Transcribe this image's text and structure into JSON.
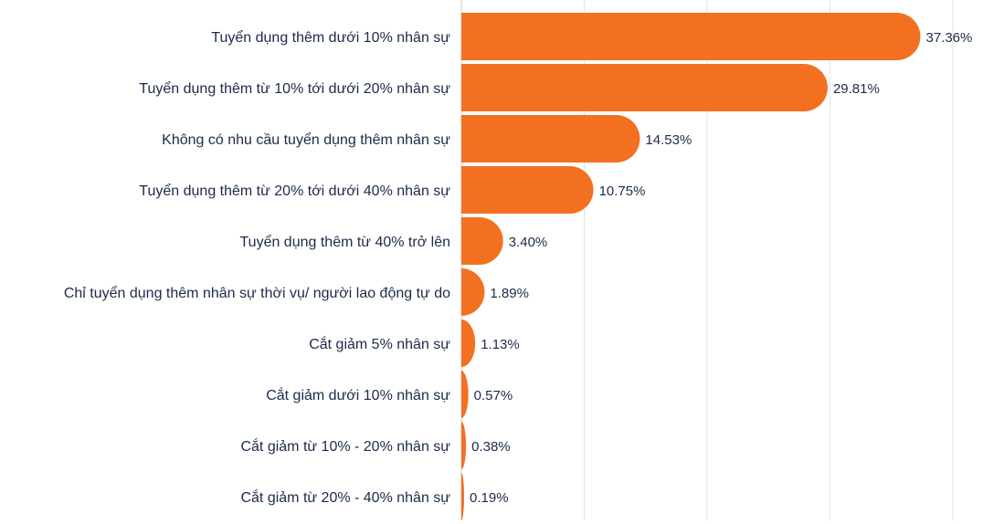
{
  "chart_data": {
    "type": "bar",
    "orientation": "horizontal",
    "categories": [
      "Tuyển dụng thêm dưới 10% nhân sự",
      "Tuyển dụng thêm từ 10% tới dưới 20% nhân sự",
      "Không có nhu cầu tuyển dụng thêm nhân sự",
      "Tuyển dụng thêm từ 20% tới dưới 40% nhân sự",
      "Tuyển dụng thêm từ 40% trở lên",
      "Chỉ tuyển dụng thêm nhân sự thời vụ/ người lao động tự do",
      "Cắt giảm 5% nhân sự",
      "Cắt giảm dưới 10% nhân sự",
      "Cắt giảm từ 10% - 20% nhân sự",
      "Cắt giảm từ 20% - 40% nhân sự"
    ],
    "values": [
      37.36,
      29.81,
      14.53,
      10.75,
      3.4,
      1.89,
      1.13,
      0.57,
      0.38,
      0.19
    ],
    "value_labels": [
      "37.36%",
      "29.81%",
      "14.53%",
      "10.75%",
      "3.40%",
      "1.89%",
      "1.13%",
      "0.57%",
      "0.38%",
      "0.19%"
    ],
    "xlim": [
      0,
      40
    ],
    "grid": true,
    "bar_color": "#f37021",
    "title": "",
    "xlabel": "",
    "ylabel": ""
  }
}
